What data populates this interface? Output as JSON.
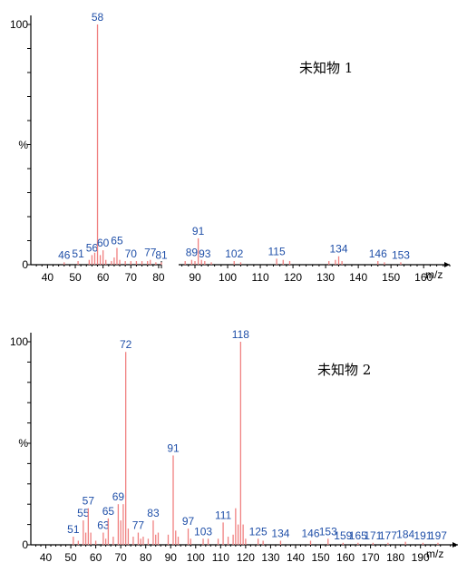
{
  "chart_data": [
    {
      "type": "bar",
      "title": "未知物 1",
      "xlabel": "m/z",
      "ylabel": "%",
      "y_ticks": [
        "100",
        "%",
        "0"
      ],
      "ylim": [
        0,
        100
      ],
      "xlim": [
        34,
        168
      ],
      "axis_break_after": 80,
      "x_ticks": [
        40,
        50,
        60,
        70,
        80,
        90,
        100,
        110,
        120,
        130,
        140,
        150,
        160
      ],
      "peak_color": "#f08080",
      "label_color": "#1f4fa8",
      "peaks": [
        {
          "x": 46,
          "y": 1,
          "label": "46"
        },
        {
          "x": 51,
          "y": 1.5,
          "label": "51"
        },
        {
          "x": 55,
          "y": 2,
          "label": ""
        },
        {
          "x": 56,
          "y": 4,
          "label": "56"
        },
        {
          "x": 57,
          "y": 5,
          "label": ""
        },
        {
          "x": 58,
          "y": 100,
          "label": "58"
        },
        {
          "x": 59,
          "y": 4,
          "label": ""
        },
        {
          "x": 60,
          "y": 6,
          "label": "60"
        },
        {
          "x": 61,
          "y": 2,
          "label": ""
        },
        {
          "x": 63,
          "y": 1.5,
          "label": ""
        },
        {
          "x": 64,
          "y": 3,
          "label": ""
        },
        {
          "x": 65,
          "y": 7,
          "label": "65"
        },
        {
          "x": 66,
          "y": 2,
          "label": ""
        },
        {
          "x": 68,
          "y": 1.5,
          "label": ""
        },
        {
          "x": 70,
          "y": 1.5,
          "label": "70"
        },
        {
          "x": 72,
          "y": 1.5,
          "label": ""
        },
        {
          "x": 74,
          "y": 1.5,
          "label": ""
        },
        {
          "x": 76,
          "y": 1.5,
          "label": ""
        },
        {
          "x": 77,
          "y": 2,
          "label": "77"
        },
        {
          "x": 79,
          "y": 1,
          "label": ""
        },
        {
          "x": 81,
          "y": 1,
          "label": "81"
        },
        {
          "x": 87,
          "y": 1.5,
          "label": ""
        },
        {
          "x": 89,
          "y": 2,
          "label": "89"
        },
        {
          "x": 90,
          "y": 1.5,
          "label": ""
        },
        {
          "x": 91,
          "y": 11,
          "label": "91"
        },
        {
          "x": 92,
          "y": 2,
          "label": ""
        },
        {
          "x": 93,
          "y": 1.5,
          "label": "93"
        },
        {
          "x": 95,
          "y": 1,
          "label": ""
        },
        {
          "x": 102,
          "y": 1.5,
          "label": "102"
        },
        {
          "x": 104,
          "y": 1,
          "label": ""
        },
        {
          "x": 115,
          "y": 2.5,
          "label": "115"
        },
        {
          "x": 117,
          "y": 2,
          "label": ""
        },
        {
          "x": 119,
          "y": 1.5,
          "label": ""
        },
        {
          "x": 131,
          "y": 1.5,
          "label": ""
        },
        {
          "x": 133,
          "y": 2,
          "label": ""
        },
        {
          "x": 134,
          "y": 3.5,
          "label": "134"
        },
        {
          "x": 135,
          "y": 1.5,
          "label": ""
        },
        {
          "x": 146,
          "y": 1.5,
          "label": "146"
        },
        {
          "x": 148,
          "y": 1,
          "label": ""
        },
        {
          "x": 153,
          "y": 1,
          "label": "153"
        }
      ]
    },
    {
      "type": "bar",
      "title": "未知物 2",
      "xlabel": "m/z",
      "ylabel": "%",
      "y_ticks": [
        "100",
        "%",
        "0"
      ],
      "ylim": [
        0,
        100
      ],
      "xlim": [
        34,
        205
      ],
      "x_ticks": [
        40,
        50,
        60,
        70,
        80,
        90,
        100,
        110,
        120,
        130,
        140,
        150,
        160,
        170,
        180,
        190
      ],
      "peak_color": "#f08080",
      "label_color": "#1f4fa8",
      "peaks": [
        {
          "x": 51,
          "y": 4,
          "label": "51"
        },
        {
          "x": 53,
          "y": 2,
          "label": ""
        },
        {
          "x": 55,
          "y": 12,
          "label": "55"
        },
        {
          "x": 56,
          "y": 6,
          "label": ""
        },
        {
          "x": 57,
          "y": 18,
          "label": "57"
        },
        {
          "x": 58,
          "y": 6,
          "label": ""
        },
        {
          "x": 60,
          "y": 2,
          "label": ""
        },
        {
          "x": 63,
          "y": 6,
          "label": "63"
        },
        {
          "x": 64,
          "y": 3,
          "label": ""
        },
        {
          "x": 65,
          "y": 13,
          "label": "65"
        },
        {
          "x": 67,
          "y": 4,
          "label": ""
        },
        {
          "x": 69,
          "y": 20,
          "label": "69"
        },
        {
          "x": 70,
          "y": 12,
          "label": ""
        },
        {
          "x": 71,
          "y": 20,
          "label": ""
        },
        {
          "x": 72,
          "y": 95,
          "label": "72"
        },
        {
          "x": 73,
          "y": 8,
          "label": ""
        },
        {
          "x": 75,
          "y": 4,
          "label": ""
        },
        {
          "x": 77,
          "y": 6,
          "label": "77"
        },
        {
          "x": 78,
          "y": 3,
          "label": ""
        },
        {
          "x": 79,
          "y": 4,
          "label": ""
        },
        {
          "x": 81,
          "y": 3,
          "label": ""
        },
        {
          "x": 83,
          "y": 12,
          "label": "83"
        },
        {
          "x": 84,
          "y": 5,
          "label": ""
        },
        {
          "x": 85,
          "y": 6,
          "label": ""
        },
        {
          "x": 89,
          "y": 5,
          "label": ""
        },
        {
          "x": 91,
          "y": 44,
          "label": "91"
        },
        {
          "x": 92,
          "y": 7,
          "label": ""
        },
        {
          "x": 93,
          "y": 4,
          "label": ""
        },
        {
          "x": 97,
          "y": 8,
          "label": "97"
        },
        {
          "x": 98,
          "y": 3,
          "label": ""
        },
        {
          "x": 103,
          "y": 3,
          "label": "103"
        },
        {
          "x": 105,
          "y": 3,
          "label": ""
        },
        {
          "x": 109,
          "y": 3,
          "label": ""
        },
        {
          "x": 111,
          "y": 11,
          "label": "111"
        },
        {
          "x": 113,
          "y": 4,
          "label": ""
        },
        {
          "x": 115,
          "y": 5,
          "label": ""
        },
        {
          "x": 116,
          "y": 18,
          "label": ""
        },
        {
          "x": 117,
          "y": 10,
          "label": ""
        },
        {
          "x": 118,
          "y": 100,
          "label": "118"
        },
        {
          "x": 119,
          "y": 10,
          "label": ""
        },
        {
          "x": 120,
          "y": 3,
          "label": ""
        },
        {
          "x": 125,
          "y": 3,
          "label": "125"
        },
        {
          "x": 127,
          "y": 2,
          "label": ""
        },
        {
          "x": 134,
          "y": 2,
          "label": "134"
        },
        {
          "x": 146,
          "y": 2,
          "label": "146"
        },
        {
          "x": 153,
          "y": 3,
          "label": "153"
        },
        {
          "x": 159,
          "y": 1,
          "label": "159"
        },
        {
          "x": 165,
          "y": 1,
          "label": "165"
        },
        {
          "x": 171,
          "y": 1,
          "label": "171"
        },
        {
          "x": 177,
          "y": 1,
          "label": "177"
        },
        {
          "x": 184,
          "y": 1.5,
          "label": "184"
        },
        {
          "x": 191,
          "y": 1,
          "label": "191"
        },
        {
          "x": 197,
          "y": 1,
          "label": "197"
        }
      ]
    }
  ]
}
